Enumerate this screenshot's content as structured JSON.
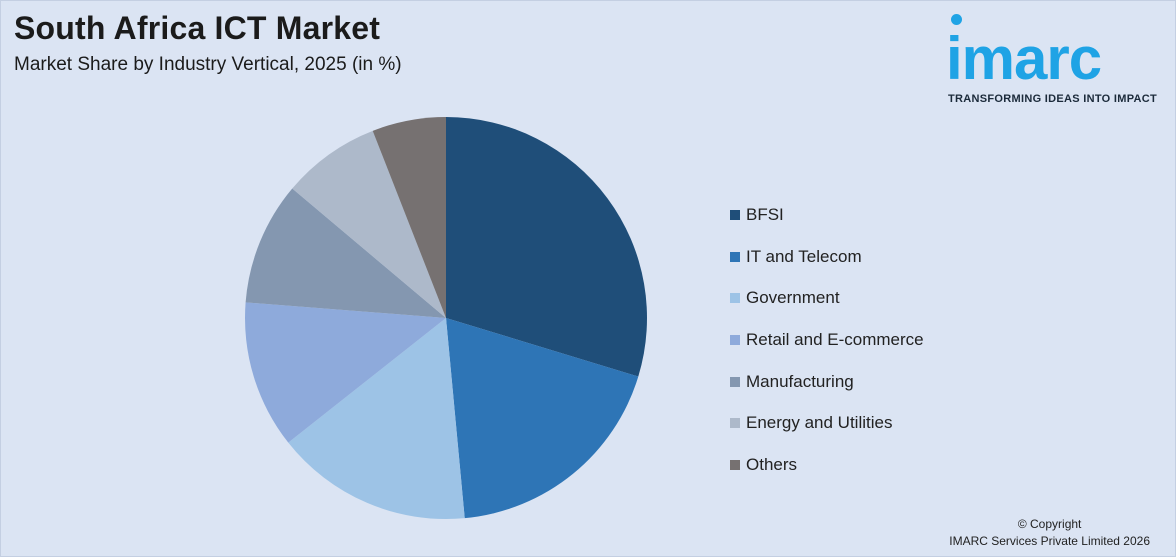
{
  "header": {
    "title": "South Africa ICT Market",
    "subtitle": "Market Share by Industry Vertical, 2025 (in %)"
  },
  "logo": {
    "wordmark": "imarc",
    "tagline": "TRANSFORMING IDEAS INTO IMPACT",
    "color": "#1fa3e5"
  },
  "chart_data": {
    "type": "pie",
    "title": "South Africa ICT Market",
    "subtitle": "Market Share by Industry Vertical, 2025 (in %)",
    "legend_position": "right",
    "slices": [
      {
        "label": "BFSI",
        "value": 30,
        "color": "#1f4e79"
      },
      {
        "label": "IT and Telecom",
        "value": 19,
        "color": "#2e75b6"
      },
      {
        "label": "Government",
        "value": 16,
        "color": "#9dc3e6"
      },
      {
        "label": "Retail and E-commerce",
        "value": 12,
        "color": "#8eaadb"
      },
      {
        "label": "Manufacturing",
        "value": 10,
        "color": "#8497b0"
      },
      {
        "label": "Energy and Utilities",
        "value": 8,
        "color": "#adb9ca"
      },
      {
        "label": "Others",
        "value": 6,
        "color": "#767171"
      }
    ]
  },
  "footer": {
    "copyright": "© Copyright",
    "company": "IMARC Services Private Limited 2026"
  }
}
